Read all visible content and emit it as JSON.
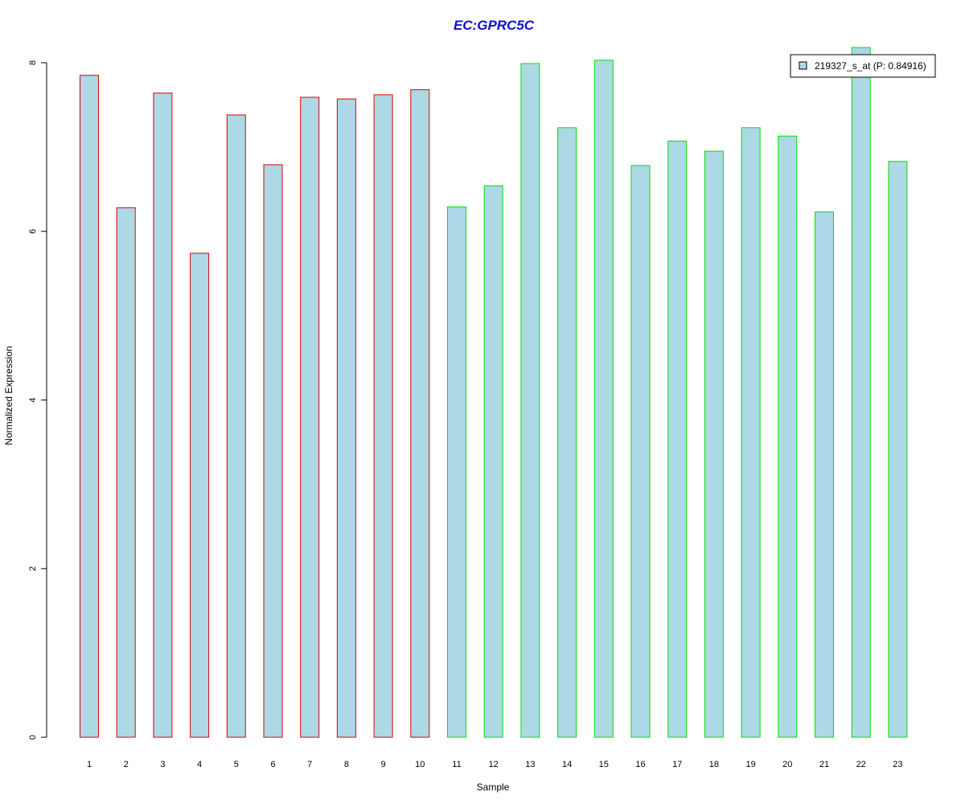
{
  "chart_data": {
    "type": "bar",
    "title": "EC:GPRC5C",
    "xlabel": "Sample",
    "ylabel": "Normalized Expression",
    "ylim": [
      0,
      8
    ],
    "yticks": [
      0,
      2,
      4,
      6,
      8
    ],
    "categories": [
      "1",
      "2",
      "3",
      "4",
      "5",
      "6",
      "7",
      "8",
      "9",
      "10",
      "11",
      "12",
      "13",
      "14",
      "15",
      "16",
      "17",
      "18",
      "19",
      "20",
      "21",
      "22",
      "23"
    ],
    "series": [
      {
        "name": "219327_s_at (P: 0.84916)",
        "values": [
          7.85,
          6.28,
          7.64,
          5.74,
          7.38,
          6.79,
          7.59,
          7.57,
          7.62,
          7.68,
          6.29,
          6.54,
          7.99,
          7.23,
          8.03,
          6.78,
          7.07,
          6.95,
          7.23,
          7.13,
          6.23,
          8.18,
          6.83
        ]
      }
    ],
    "groups": [
      {
        "samples": [
          1,
          2,
          3,
          4,
          5,
          6,
          7,
          8,
          9,
          10
        ],
        "border_color": "#e00000"
      },
      {
        "samples": [
          11,
          12,
          13,
          14,
          15,
          16,
          17,
          18,
          19,
          20,
          21,
          22,
          23
        ],
        "border_color": "#00e000"
      }
    ],
    "colors": {
      "fill": "#add8e6",
      "title": "#1010c8"
    },
    "legend_position": "top-right",
    "grid": false
  }
}
